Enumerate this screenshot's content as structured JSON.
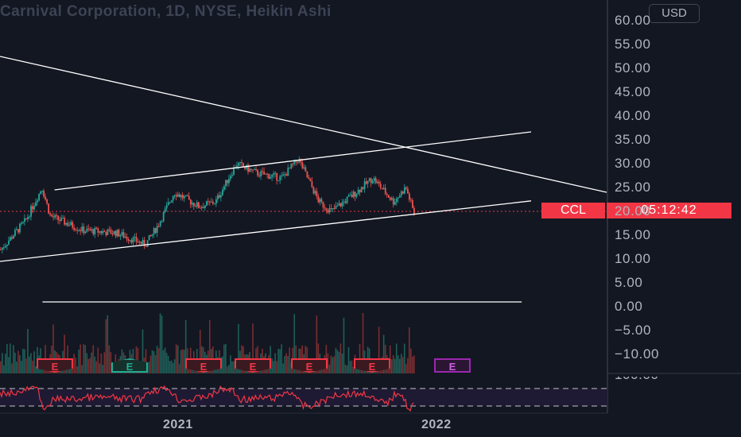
{
  "header": {
    "title": "Carnival Corporation, 1D, NYSE, Heikin Ashi",
    "currency": "USD"
  },
  "price_label": {
    "symbol": "CCL",
    "countdown": "05:12:42"
  },
  "colors": {
    "up": "#26a69a",
    "down": "#ef5350",
    "line": "#ffffff",
    "tag": "#f23645",
    "rsi": "#f23645"
  },
  "earnings_markers": [
    {
      "label": "E",
      "color": "red"
    },
    {
      "label": "E",
      "color": "teal"
    },
    {
      "label": "E",
      "color": "red"
    },
    {
      "label": "E",
      "color": "red"
    },
    {
      "label": "E",
      "color": "red"
    },
    {
      "label": "E",
      "color": "red"
    },
    {
      "label": "E",
      "color": "purple"
    }
  ],
  "chart_data": {
    "type": "candlestick",
    "title": "Carnival Corporation, 1D, NYSE, Heikin Ashi",
    "yaxis": {
      "ticks": [
        "60.00",
        "55.00",
        "50.00",
        "45.00",
        "40.00",
        "35.00",
        "30.00",
        "25.00",
        "20.00",
        "15.00",
        "10.00",
        "5.00",
        "0.00",
        "−5.00",
        "−10.00"
      ],
      "ylim": [
        -12,
        62
      ]
    },
    "xaxis": {
      "ticks": [
        "2021",
        "2022"
      ]
    },
    "last_price_line": 20.0,
    "price_path": [
      {
        "t": 0,
        "v": 12
      },
      {
        "t": 0.06,
        "v": 18
      },
      {
        "t": 0.1,
        "v": 25
      },
      {
        "t": 0.12,
        "v": 19
      },
      {
        "t": 0.2,
        "v": 16
      },
      {
        "t": 0.28,
        "v": 15.5
      },
      {
        "t": 0.35,
        "v": 13
      },
      {
        "t": 0.38,
        "v": 17
      },
      {
        "t": 0.42,
        "v": 24
      },
      {
        "t": 0.48,
        "v": 21
      },
      {
        "t": 0.52,
        "v": 22
      },
      {
        "t": 0.57,
        "v": 30
      },
      {
        "t": 0.62,
        "v": 28
      },
      {
        "t": 0.68,
        "v": 27
      },
      {
        "t": 0.72,
        "v": 31
      },
      {
        "t": 0.77,
        "v": 22
      },
      {
        "t": 0.8,
        "v": 20
      },
      {
        "t": 0.86,
        "v": 24
      },
      {
        "t": 0.9,
        "v": 27
      },
      {
        "t": 0.95,
        "v": 22
      },
      {
        "t": 0.98,
        "v": 25
      },
      {
        "t": 1,
        "v": 19.5
      }
    ],
    "trendlines": [
      {
        "name": "channel-upper",
        "from": [
          0.09,
          24.5
        ],
        "to": [
          1.0,
          38.6
        ]
      },
      {
        "name": "channel-lower",
        "from": [
          0.0,
          9.5
        ],
        "to": [
          1.0,
          24.0
        ]
      },
      {
        "name": "descending",
        "from": [
          0.0,
          52.5
        ],
        "to": [
          1.0,
          24.0
        ]
      },
      {
        "name": "baseline",
        "from": [
          0.07,
          1.0
        ],
        "to": [
          0.86,
          1.0
        ]
      }
    ],
    "rsi": {
      "upper_band": 70,
      "lower_band": 30
    }
  }
}
